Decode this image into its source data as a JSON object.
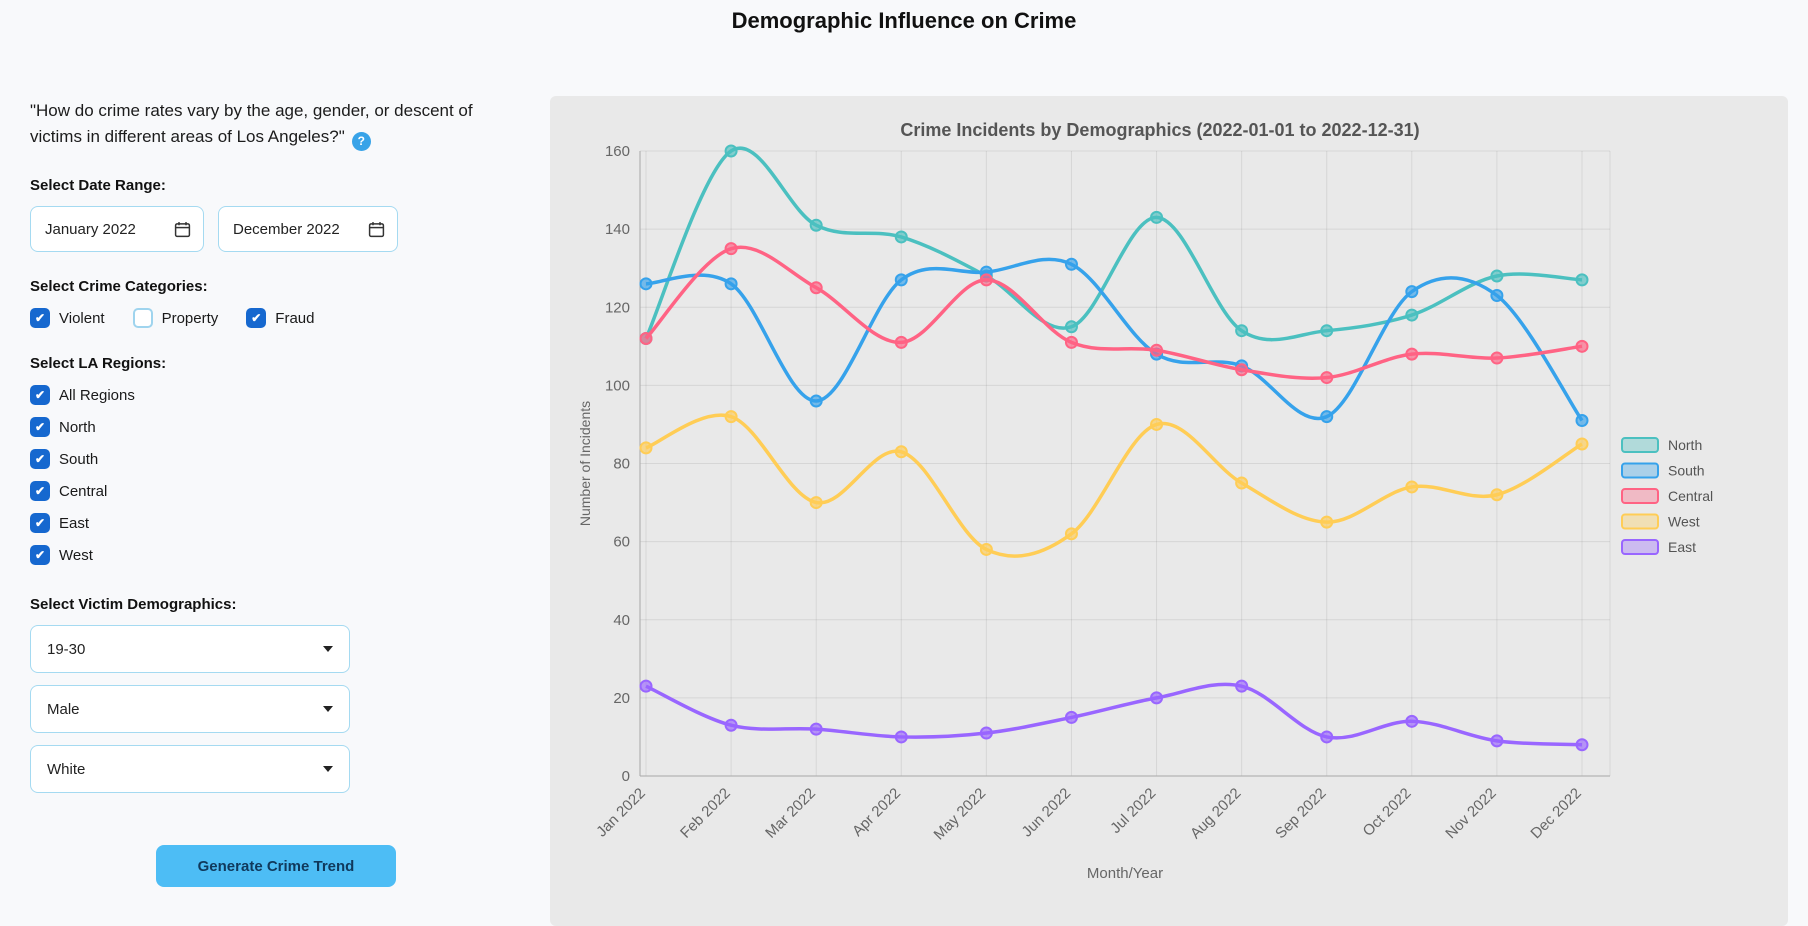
{
  "page": {
    "title": "Demographic Influence on Crime"
  },
  "sidebar": {
    "question": "\"How do crime rates vary by the age, gender, or descent of victims in different areas of Los Angeles?\"",
    "help_icon": "?",
    "date_range": {
      "label": "Select Date Range:",
      "start_value": "January 2022",
      "end_value": "December 2022"
    },
    "crime_categories": {
      "label": "Select Crime Categories:",
      "options": [
        {
          "label": "Violent",
          "checked": true
        },
        {
          "label": "Property",
          "checked": false
        },
        {
          "label": "Fraud",
          "checked": true
        }
      ]
    },
    "regions": {
      "label": "Select LA Regions:",
      "options": [
        {
          "label": "All Regions",
          "checked": true
        },
        {
          "label": "North",
          "checked": true
        },
        {
          "label": "South",
          "checked": true
        },
        {
          "label": "Central",
          "checked": true
        },
        {
          "label": "East",
          "checked": true
        },
        {
          "label": "West",
          "checked": true
        }
      ]
    },
    "demographics": {
      "label": "Select Victim Demographics:",
      "selects": [
        {
          "value": "19-30"
        },
        {
          "value": "Male"
        },
        {
          "value": "White"
        }
      ]
    },
    "generate_button": "Generate Crime Trend"
  },
  "colors": {
    "button_blue": "#4dbdf5",
    "checkbox_blue": "#1668cf",
    "input_border": "#a5daf1",
    "help_icon_blue": "#38a3e8",
    "panel_bg": "#e9e9e9"
  },
  "chart_data": {
    "type": "line",
    "title": "Crime Incidents by Demographics (2022-01-01 to 2022-12-31)",
    "xlabel": "Month/Year",
    "ylabel": "Number of Incidents",
    "ylim": [
      0,
      160
    ],
    "ytick_step": 20,
    "grid": true,
    "legend_position": "right",
    "categories": [
      "Jan 2022",
      "Feb 2022",
      "Mar 2022",
      "Apr 2022",
      "May 2022",
      "Jun 2022",
      "Jul 2022",
      "Aug 2022",
      "Sep 2022",
      "Oct 2022",
      "Nov 2022",
      "Dec 2022"
    ],
    "series": [
      {
        "name": "North",
        "color": "#4bc0c0",
        "values": [
          112,
          160,
          141,
          138,
          128,
          115,
          143,
          114,
          114,
          118,
          128,
          127
        ]
      },
      {
        "name": "South",
        "color": "#36a2eb",
        "values": [
          126,
          126,
          96,
          127,
          129,
          131,
          108,
          105,
          92,
          124,
          123,
          91
        ]
      },
      {
        "name": "Central",
        "color": "#ff6384",
        "values": [
          112,
          135,
          125,
          111,
          127,
          111,
          109,
          104,
          102,
          108,
          107,
          110
        ]
      },
      {
        "name": "West",
        "color": "#ffcd56",
        "values": [
          84,
          92,
          70,
          83,
          58,
          62,
          90,
          75,
          65,
          74,
          72,
          85
        ]
      },
      {
        "name": "East",
        "color": "#9966ff",
        "values": [
          23,
          13,
          12,
          10,
          11,
          15,
          20,
          23,
          10,
          14,
          9,
          8
        ]
      }
    ]
  }
}
